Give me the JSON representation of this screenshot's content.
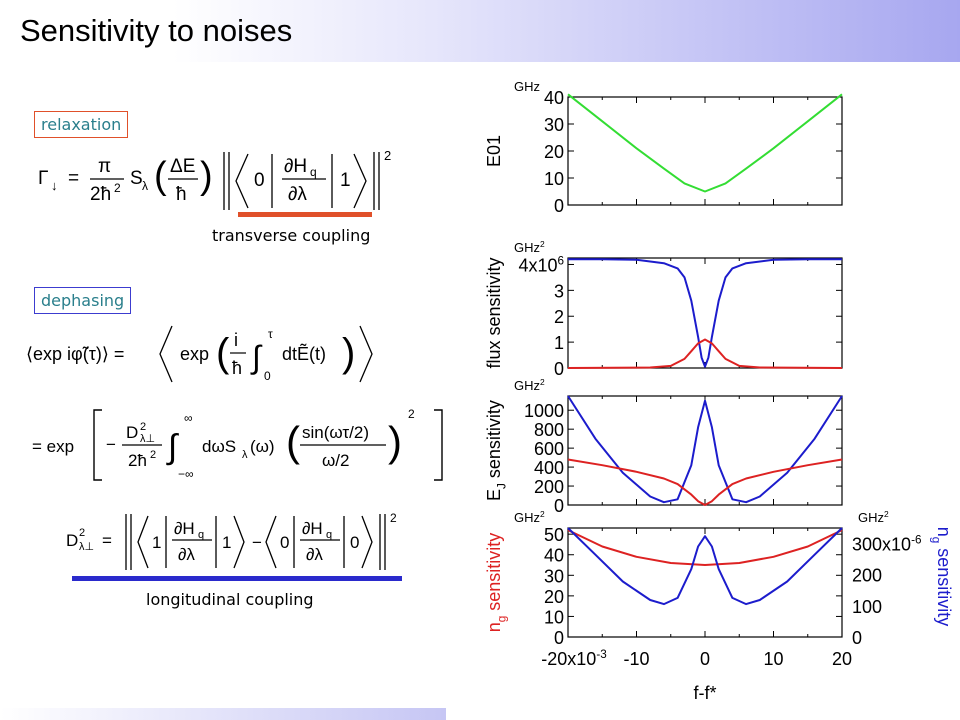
{
  "slide": {
    "title": "Sensitivity to noises",
    "relaxation_label": "relaxation",
    "dephasing_label": "dephasing",
    "transverse_caption": "transverse coupling",
    "longitudinal_caption": "longitudinal coupling",
    "equations": {
      "relaxation": "Γ↓ = (π / 2ħ²) S_λ(ΔE/ħ) |⟨0|∂H_q/∂λ|1⟩|²",
      "dephasing_1": "⟨exp iφ̃(τ)⟩ = ⟨exp((i/ħ) ∫₀^τ dt Ẽ(t))⟩",
      "dephasing_2": "= exp[ −(D²_λ⊥ / 2ħ²) ∫₋∞^∞ dω S_λ(ω) ( sin(ωτ/2) / (ω/2) )² ]",
      "longitudinal": "D²_λ⊥ = |⟨1|∂H_q/∂λ|1⟩ − ⟨0|∂H_q/∂λ|0⟩|²"
    },
    "colors": {
      "accent_red": "#e0502a",
      "accent_blue": "#2a2acc",
      "tag_text": "#2a7f8c"
    }
  },
  "chart_data": [
    {
      "type": "line",
      "ylabel": "E01",
      "unit": "GHz",
      "xlim": [
        -20,
        20
      ],
      "ylim": [
        0,
        40
      ],
      "yticks": [
        "0",
        "10",
        "20",
        "30",
        "40"
      ],
      "series": [
        {
          "color": "#33dd33",
          "x": [
            -20,
            -15,
            -10,
            -6,
            -3,
            0,
            3,
            6,
            10,
            15,
            20
          ],
          "y": [
            41,
            31,
            21,
            13.5,
            8,
            5,
            8,
            13.5,
            21,
            31,
            41
          ]
        }
      ]
    },
    {
      "type": "line",
      "ylabel": "flux sensitivity",
      "unit": "GHz",
      "unit_sup": "2",
      "xlim": [
        -20,
        20
      ],
      "ylim": [
        0,
        4.25
      ],
      "yticks": [
        "0",
        "1",
        "2",
        "3",
        "4x10"
      ],
      "ytick_top_sup": "6",
      "series": [
        {
          "color": "#1c1ccc",
          "x": [
            -20,
            -15,
            -10,
            -6,
            -4,
            -3,
            -2,
            -1,
            -0.5,
            0,
            0.5,
            1,
            2,
            3,
            4,
            6,
            10,
            15,
            20
          ],
          "y": [
            4.2,
            4.2,
            4.18,
            4.05,
            3.85,
            3.5,
            2.6,
            1.2,
            0.4,
            0.05,
            0.4,
            1.2,
            2.6,
            3.5,
            3.85,
            4.05,
            4.18,
            4.2,
            4.2
          ]
        },
        {
          "color": "#dd2222",
          "x": [
            -20,
            -8,
            -5,
            -3,
            -2,
            -1,
            0,
            1,
            2,
            3,
            5,
            8,
            20
          ],
          "y": [
            0,
            0.02,
            0.08,
            0.35,
            0.65,
            0.95,
            1.1,
            0.95,
            0.65,
            0.35,
            0.08,
            0.02,
            0
          ]
        }
      ]
    },
    {
      "type": "line",
      "ylabel": "E",
      "ylabel_sub": "J",
      "ylabel_rest": " sensitivity",
      "unit": "GHz",
      "unit_sup": "2",
      "xlim": [
        -20,
        20
      ],
      "ylim": [
        0,
        1150
      ],
      "yticks": [
        "0",
        "200",
        "400",
        "600",
        "800",
        "1000"
      ],
      "series": [
        {
          "color": "#1c1ccc",
          "x": [
            -20,
            -16,
            -12,
            -8,
            -6,
            -4,
            -2,
            -1,
            0,
            1,
            2,
            4,
            6,
            8,
            12,
            16,
            20
          ],
          "y": [
            1150,
            700,
            340,
            90,
            30,
            60,
            420,
            820,
            1100,
            820,
            420,
            60,
            30,
            90,
            340,
            700,
            1150
          ]
        },
        {
          "color": "#dd2222",
          "x": [
            -20,
            -15,
            -10,
            -6,
            -4,
            -2,
            -1,
            0,
            1,
            2,
            4,
            6,
            10,
            15,
            20
          ],
          "y": [
            480,
            420,
            350,
            280,
            220,
            110,
            40,
            0,
            40,
            110,
            220,
            280,
            350,
            420,
            480
          ]
        }
      ]
    },
    {
      "type": "line",
      "ylabel": "n",
      "ylabel_sub": "g",
      "ylabel_rest": " sensitivity",
      "ylabel_right": "n",
      "ylabel_right_sub": "g",
      "ylabel_right_rest": " sensitivity",
      "unit": "GHz",
      "unit_sup": "2",
      "unit_right": "GHz",
      "unit_right_sup": "2",
      "xlabel": "f-f*",
      "xlim": [
        -20,
        20
      ],
      "xticks": [
        "-20x10",
        "-10",
        "0",
        "10",
        "20"
      ],
      "xtick_first_sup": "-3",
      "ylim": [
        0,
        53
      ],
      "yticks": [
        "0",
        "10",
        "20",
        "30",
        "40",
        "50"
      ],
      "ylim_right": [
        0,
        350
      ],
      "yticks_right": [
        "0",
        "100",
        "200",
        "300x10"
      ],
      "ytick_right_top_sup": "-6",
      "series": [
        {
          "color": "#dd2222",
          "axis": "left",
          "x": [
            -20,
            -15,
            -10,
            -5,
            0,
            5,
            10,
            15,
            20
          ],
          "y": [
            52,
            44,
            39,
            36,
            35,
            36,
            39,
            44,
            52
          ]
        },
        {
          "color": "#1c1ccc",
          "axis": "left",
          "x": [
            -20,
            -16,
            -12,
            -8,
            -6,
            -4,
            -2,
            -1,
            0,
            1,
            2,
            4,
            6,
            8,
            12,
            16,
            20
          ],
          "y": [
            53,
            40,
            27,
            18,
            16,
            19,
            33,
            44,
            49,
            44,
            33,
            19,
            16,
            18,
            27,
            40,
            53
          ]
        }
      ]
    }
  ]
}
